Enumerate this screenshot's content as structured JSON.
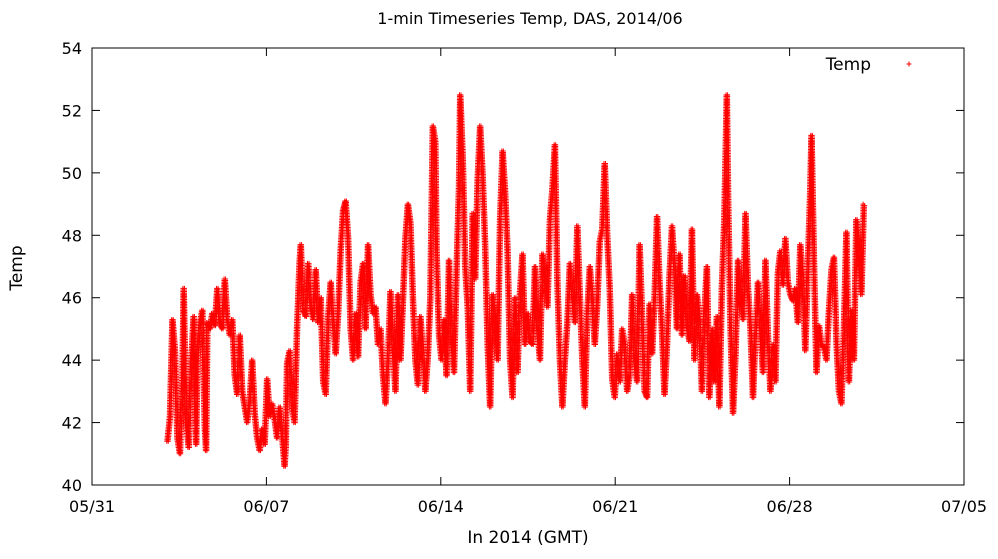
{
  "chart_data": {
    "type": "scatter",
    "title": "1-min Timeseries Temp, DAS, 2014/06",
    "xlabel": "In 2014 (GMT)",
    "ylabel": "Temp",
    "xlim": [
      "2014-05-31",
      "2014-07-05"
    ],
    "ylim": [
      40,
      54
    ],
    "x_ticks": [
      "05/31",
      "06/07",
      "06/14",
      "06/21",
      "06/28",
      "07/05"
    ],
    "y_ticks": [
      40,
      42,
      44,
      46,
      48,
      50,
      52,
      54
    ],
    "grid": false,
    "legend_position": "top-right",
    "series": [
      {
        "name": "Temp",
        "color": "#ff0000",
        "marker": "plus",
        "x_unit": "day of June 2014",
        "points": [
          [
            3.0,
            41.4
          ],
          [
            3.1,
            42.2
          ],
          [
            3.2,
            45.3
          ],
          [
            3.3,
            44.3
          ],
          [
            3.4,
            41.5
          ],
          [
            3.5,
            41.0
          ],
          [
            3.6,
            43.5
          ],
          [
            3.65,
            46.3
          ],
          [
            3.75,
            42.0
          ],
          [
            3.85,
            41.2
          ],
          [
            3.95,
            43.9
          ],
          [
            4.05,
            45.4
          ],
          [
            4.15,
            41.3
          ],
          [
            4.2,
            44.1
          ],
          [
            4.3,
            45.2
          ],
          [
            4.4,
            45.6
          ],
          [
            4.5,
            41.8
          ],
          [
            4.55,
            41.1
          ],
          [
            4.6,
            45.2
          ],
          [
            4.7,
            45.0
          ],
          [
            4.8,
            45.5
          ],
          [
            4.9,
            45.1
          ],
          [
            5.0,
            46.3
          ],
          [
            5.1,
            45.2
          ],
          [
            5.2,
            45.0
          ],
          [
            5.3,
            46.6
          ],
          [
            5.4,
            45.3
          ],
          [
            5.5,
            44.8
          ],
          [
            5.6,
            45.3
          ],
          [
            5.7,
            43.5
          ],
          [
            5.8,
            42.9
          ],
          [
            5.9,
            44.8
          ],
          [
            6.0,
            43.0
          ],
          [
            6.1,
            42.5
          ],
          [
            6.2,
            42.0
          ],
          [
            6.3,
            42.7
          ],
          [
            6.4,
            44.0
          ],
          [
            6.5,
            42.3
          ],
          [
            6.6,
            41.5
          ],
          [
            6.7,
            41.1
          ],
          [
            6.8,
            41.8
          ],
          [
            6.9,
            41.3
          ],
          [
            7.0,
            43.4
          ],
          [
            7.1,
            42.2
          ],
          [
            7.2,
            42.6
          ],
          [
            7.3,
            42.1
          ],
          [
            7.4,
            41.5
          ],
          [
            7.5,
            42.5
          ],
          [
            7.6,
            41.6
          ],
          [
            7.7,
            40.6
          ],
          [
            7.75,
            41.3
          ],
          [
            7.8,
            43.9
          ],
          [
            7.9,
            44.3
          ],
          [
            8.0,
            42.5
          ],
          [
            8.1,
            42.0
          ],
          [
            8.2,
            45.0
          ],
          [
            8.3,
            47.1
          ],
          [
            8.35,
            47.7
          ],
          [
            8.45,
            45.6
          ],
          [
            8.55,
            45.4
          ],
          [
            8.65,
            47.1
          ],
          [
            8.75,
            45.7
          ],
          [
            8.85,
            45.3
          ],
          [
            8.95,
            46.9
          ],
          [
            9.05,
            45.2
          ],
          [
            9.15,
            46.0
          ],
          [
            9.25,
            43.3
          ],
          [
            9.35,
            42.9
          ],
          [
            9.45,
            45.4
          ],
          [
            9.55,
            46.5
          ],
          [
            9.65,
            45.2
          ],
          [
            9.75,
            44.2
          ],
          [
            9.85,
            45.5
          ],
          [
            9.95,
            47.5
          ],
          [
            10.05,
            48.8
          ],
          [
            10.15,
            49.1
          ],
          [
            10.25,
            47.9
          ],
          [
            10.35,
            45.0
          ],
          [
            10.45,
            44.0
          ],
          [
            10.55,
            45.5
          ],
          [
            10.65,
            44.1
          ],
          [
            10.75,
            46.5
          ],
          [
            10.85,
            47.1
          ],
          [
            10.95,
            45.0
          ],
          [
            11.05,
            47.7
          ],
          [
            11.15,
            46.1
          ],
          [
            11.25,
            45.5
          ],
          [
            11.35,
            45.7
          ],
          [
            11.45,
            44.5
          ],
          [
            11.55,
            45.0
          ],
          [
            11.65,
            43.5
          ],
          [
            11.75,
            42.6
          ],
          [
            11.85,
            44.0
          ],
          [
            11.95,
            46.2
          ],
          [
            12.05,
            44.4
          ],
          [
            12.15,
            43.0
          ],
          [
            12.25,
            46.1
          ],
          [
            12.35,
            44.0
          ],
          [
            12.45,
            45.9
          ],
          [
            12.55,
            47.9
          ],
          [
            12.65,
            49.0
          ],
          [
            12.75,
            48.4
          ],
          [
            12.85,
            46.0
          ],
          [
            12.95,
            44.0
          ],
          [
            13.05,
            43.2
          ],
          [
            13.15,
            45.4
          ],
          [
            13.25,
            44.3
          ],
          [
            13.35,
            43.0
          ],
          [
            13.45,
            44.1
          ],
          [
            13.55,
            46.0
          ],
          [
            13.65,
            51.5
          ],
          [
            13.75,
            51.0
          ],
          [
            13.8,
            47.5
          ],
          [
            13.9,
            44.8
          ],
          [
            14.0,
            44.0
          ],
          [
            14.1,
            45.3
          ],
          [
            14.2,
            43.5
          ],
          [
            14.3,
            47.2
          ],
          [
            14.4,
            44.7
          ],
          [
            14.5,
            43.6
          ],
          [
            14.6,
            46.8
          ],
          [
            14.7,
            49.5
          ],
          [
            14.75,
            52.5
          ],
          [
            14.85,
            50.5
          ],
          [
            14.95,
            47.0
          ],
          [
            15.05,
            45.7
          ],
          [
            15.15,
            43.0
          ],
          [
            15.25,
            48.7
          ],
          [
            15.35,
            46.6
          ],
          [
            15.45,
            49.8
          ],
          [
            15.55,
            51.5
          ],
          [
            15.65,
            49.9
          ],
          [
            15.75,
            47.7
          ],
          [
            15.85,
            44.5
          ],
          [
            15.95,
            42.5
          ],
          [
            16.05,
            46.1
          ],
          [
            16.15,
            45.2
          ],
          [
            16.25,
            44.0
          ],
          [
            16.35,
            48.5
          ],
          [
            16.45,
            50.7
          ],
          [
            16.55,
            49.4
          ],
          [
            16.65,
            47.5
          ],
          [
            16.75,
            44.0
          ],
          [
            16.85,
            42.8
          ],
          [
            16.95,
            46.0
          ],
          [
            17.05,
            43.6
          ],
          [
            17.15,
            46.2
          ],
          [
            17.25,
            47.4
          ],
          [
            17.35,
            44.5
          ],
          [
            17.45,
            45.5
          ],
          [
            17.55,
            44.6
          ],
          [
            17.65,
            44.5
          ],
          [
            17.75,
            47.0
          ],
          [
            17.85,
            45.0
          ],
          [
            17.95,
            44.0
          ],
          [
            18.05,
            47.4
          ],
          [
            18.15,
            46.7
          ],
          [
            18.25,
            45.7
          ],
          [
            18.35,
            48.5
          ],
          [
            18.45,
            49.5
          ],
          [
            18.55,
            50.9
          ],
          [
            18.65,
            46.5
          ],
          [
            18.75,
            44.0
          ],
          [
            18.85,
            42.5
          ],
          [
            18.95,
            44.0
          ],
          [
            19.05,
            45.2
          ],
          [
            19.15,
            47.1
          ],
          [
            19.25,
            46.1
          ],
          [
            19.35,
            45.2
          ],
          [
            19.45,
            48.3
          ],
          [
            19.55,
            46.1
          ],
          [
            19.65,
            44.0
          ],
          [
            19.75,
            42.5
          ],
          [
            19.85,
            45.5
          ],
          [
            19.95,
            47.0
          ],
          [
            20.05,
            46.0
          ],
          [
            20.15,
            44.5
          ],
          [
            20.25,
            45.8
          ],
          [
            20.35,
            47.8
          ],
          [
            20.45,
            48.2
          ],
          [
            20.55,
            50.3
          ],
          [
            20.65,
            48.0
          ],
          [
            20.75,
            46.3
          ],
          [
            20.85,
            43.4
          ],
          [
            20.95,
            42.8
          ],
          [
            21.05,
            44.2
          ],
          [
            21.15,
            43.3
          ],
          [
            21.25,
            45.0
          ],
          [
            21.35,
            44.5
          ],
          [
            21.45,
            43.0
          ],
          [
            21.55,
            43.5
          ],
          [
            21.65,
            46.1
          ],
          [
            21.75,
            44.0
          ],
          [
            21.85,
            43.3
          ],
          [
            21.95,
            47.7
          ],
          [
            22.05,
            45.4
          ],
          [
            22.15,
            43.0
          ],
          [
            22.25,
            42.8
          ],
          [
            22.35,
            45.8
          ],
          [
            22.45,
            44.2
          ],
          [
            22.55,
            46.0
          ],
          [
            22.65,
            48.6
          ],
          [
            22.75,
            46.5
          ],
          [
            22.85,
            44.9
          ],
          [
            22.95,
            42.9
          ],
          [
            23.05,
            44.5
          ],
          [
            23.15,
            46.7
          ],
          [
            23.25,
            48.3
          ],
          [
            23.35,
            47.0
          ],
          [
            23.45,
            45.0
          ],
          [
            23.55,
            47.4
          ],
          [
            23.65,
            44.8
          ],
          [
            23.75,
            46.7
          ],
          [
            23.85,
            45.1
          ],
          [
            23.95,
            44.6
          ],
          [
            24.05,
            48.2
          ],
          [
            24.15,
            44.0
          ],
          [
            24.25,
            46.1
          ],
          [
            24.35,
            45.3
          ],
          [
            24.45,
            43.0
          ],
          [
            24.55,
            45.5
          ],
          [
            24.65,
            47.0
          ],
          [
            24.75,
            42.8
          ],
          [
            24.85,
            45.0
          ],
          [
            24.95,
            43.3
          ],
          [
            25.05,
            45.4
          ],
          [
            25.15,
            42.5
          ],
          [
            25.25,
            46.3
          ],
          [
            25.35,
            48.5
          ],
          [
            25.45,
            52.5
          ],
          [
            25.5,
            49.3
          ],
          [
            25.6,
            45.0
          ],
          [
            25.7,
            42.3
          ],
          [
            25.8,
            44.2
          ],
          [
            25.9,
            47.2
          ],
          [
            26.0,
            46.0
          ],
          [
            26.1,
            45.3
          ],
          [
            26.2,
            48.7
          ],
          [
            26.3,
            46.3
          ],
          [
            26.4,
            45.0
          ],
          [
            26.5,
            42.8
          ],
          [
            26.6,
            44.8
          ],
          [
            26.7,
            46.5
          ],
          [
            26.8,
            45.0
          ],
          [
            26.9,
            43.6
          ],
          [
            27.0,
            47.2
          ],
          [
            27.1,
            44.8
          ],
          [
            27.2,
            43.0
          ],
          [
            27.3,
            44.5
          ],
          [
            27.4,
            43.3
          ],
          [
            27.5,
            46.8
          ],
          [
            27.6,
            47.5
          ],
          [
            27.7,
            46.4
          ],
          [
            27.8,
            47.9
          ],
          [
            27.9,
            46.5
          ],
          [
            28.0,
            46.1
          ],
          [
            28.1,
            45.9
          ],
          [
            28.2,
            46.3
          ],
          [
            28.3,
            45.2
          ],
          [
            28.4,
            47.7
          ],
          [
            28.5,
            46.6
          ],
          [
            28.6,
            44.3
          ],
          [
            28.7,
            46.9
          ],
          [
            28.8,
            49.5
          ],
          [
            28.85,
            51.2
          ],
          [
            28.95,
            47.1
          ],
          [
            29.05,
            43.6
          ],
          [
            29.15,
            45.1
          ],
          [
            29.25,
            44.5
          ],
          [
            29.35,
            44.4
          ],
          [
            29.45,
            44.0
          ],
          [
            29.55,
            45.6
          ],
          [
            29.65,
            46.9
          ],
          [
            29.75,
            47.3
          ],
          [
            29.85,
            44.6
          ],
          [
            29.95,
            43.0
          ],
          [
            30.05,
            42.6
          ],
          [
            30.15,
            45.0
          ],
          [
            30.25,
            48.1
          ],
          [
            30.35,
            43.3
          ],
          [
            30.45,
            45.6
          ],
          [
            30.55,
            44.0
          ],
          [
            30.65,
            48.5
          ],
          [
            30.75,
            47.6
          ],
          [
            30.85,
            46.1
          ],
          [
            30.95,
            49.0
          ]
        ]
      }
    ]
  }
}
